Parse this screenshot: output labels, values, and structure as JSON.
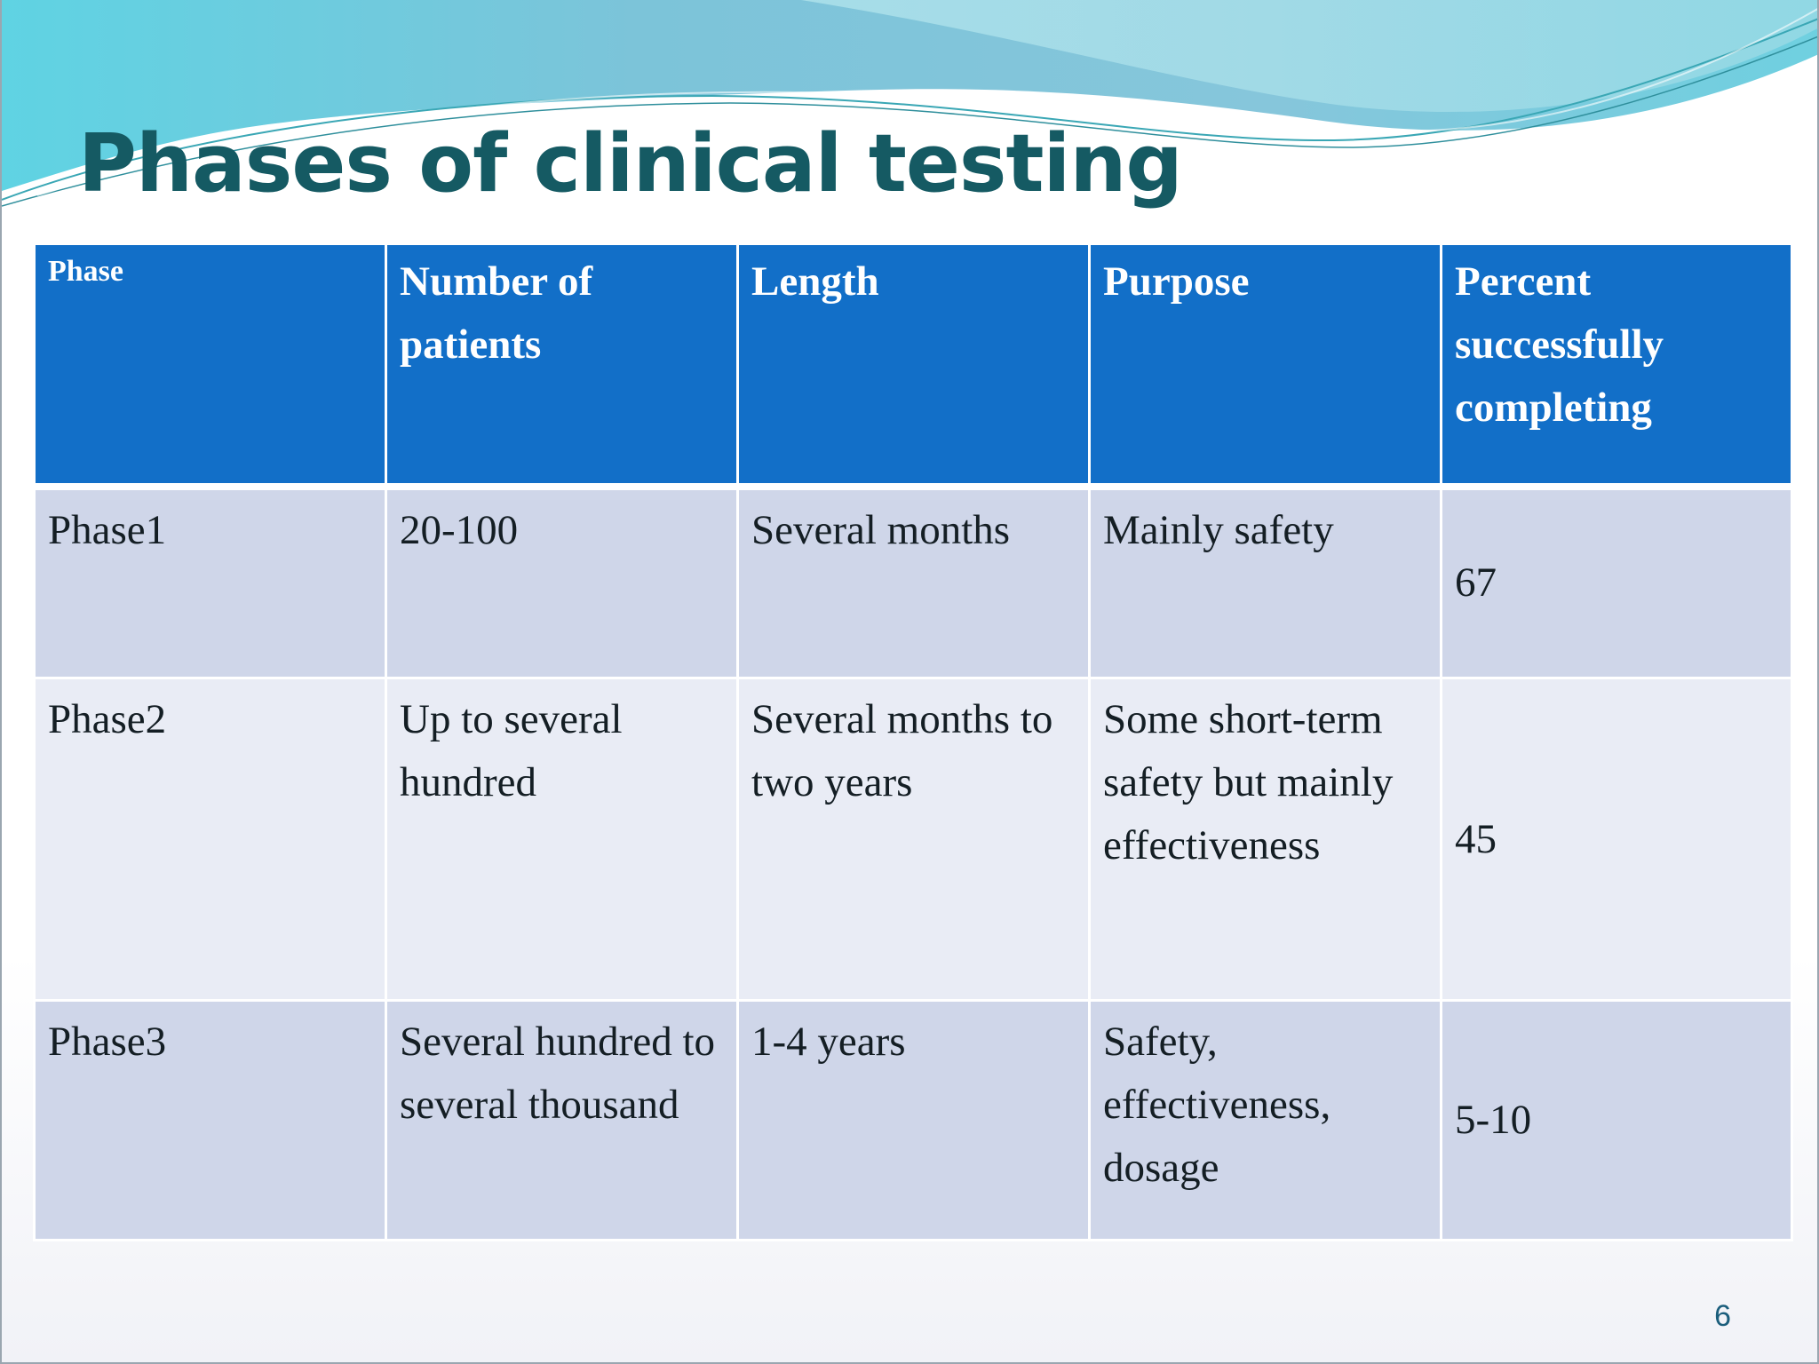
{
  "slide": {
    "title": "Phases of clinical testing",
    "page_number": "6"
  },
  "table": {
    "headers": [
      "Phase",
      "Number of patients",
      "Length",
      "Purpose",
      "Percent successfully completing"
    ],
    "rows": [
      [
        "Phase1",
        "20-100",
        "Several months",
        "Mainly safety",
        "67"
      ],
      [
        "Phase2",
        "Up to several hundred",
        "Several months to two years",
        "Some short-term safety but mainly effectiveness",
        "45"
      ],
      [
        "Phase3",
        "Several hundred to several thousand",
        "1-4 years",
        "Safety, effectiveness, dosage",
        "5-10"
      ]
    ]
  },
  "colors": {
    "title": "#155a63",
    "header_bg": "#126fc8",
    "row_dark": "#cfd6e9",
    "row_light": "#e9ecf5"
  }
}
